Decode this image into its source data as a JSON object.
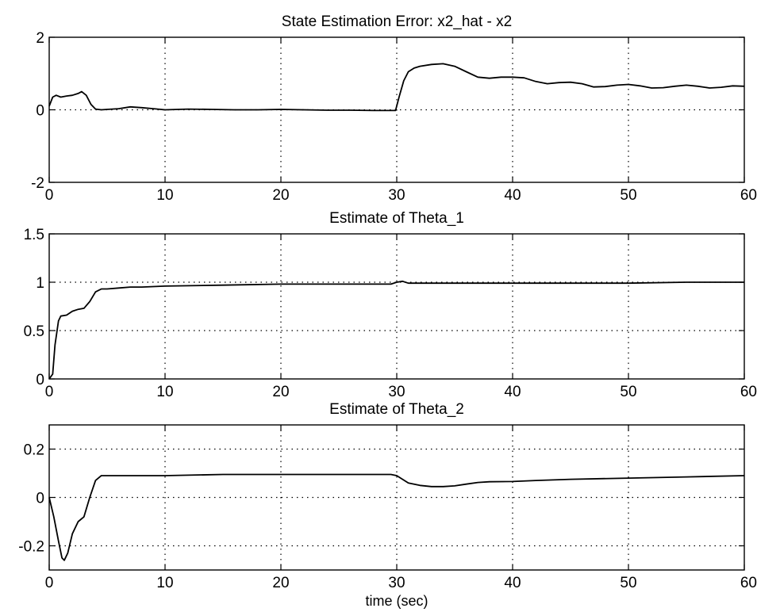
{
  "chart_data": [
    {
      "type": "line",
      "title": "State Estimation Error: x2_hat - x2",
      "xlabel": "",
      "ylabel": "",
      "xlim": [
        0,
        60
      ],
      "ylim": [
        -2,
        2
      ],
      "xticks": [
        "0",
        "10",
        "20",
        "30",
        "40",
        "50",
        "60"
      ],
      "yticks": [
        "-2",
        "0",
        "2"
      ],
      "ytick_values": [
        -2,
        0,
        2
      ],
      "grid": true,
      "series": [
        {
          "x": [
            0,
            0.3,
            0.6,
            1,
            1.5,
            2,
            2.5,
            2.8,
            3.2,
            3.6,
            4,
            4.5,
            5,
            6,
            7,
            8,
            9,
            10,
            12,
            14,
            16,
            18,
            20,
            22,
            24,
            26,
            28,
            29.9,
            30.2,
            30.6,
            31,
            31.5,
            32,
            33,
            34,
            35,
            36,
            37,
            38,
            39,
            40,
            41,
            42,
            43,
            44,
            45,
            46,
            47,
            48,
            49,
            50,
            51,
            52,
            53,
            54,
            55,
            56,
            57,
            58,
            59,
            60
          ],
          "values": [
            0.1,
            0.35,
            0.4,
            0.35,
            0.38,
            0.4,
            0.45,
            0.5,
            0.4,
            0.15,
            0.02,
            0,
            0.01,
            0.03,
            0.08,
            0.06,
            0.03,
            0,
            0.02,
            0.01,
            0,
            0,
            0.01,
            0,
            -0.01,
            -0.01,
            -0.02,
            -0.02,
            0.35,
            0.8,
            1.05,
            1.15,
            1.2,
            1.25,
            1.27,
            1.2,
            1.05,
            0.9,
            0.87,
            0.9,
            0.9,
            0.88,
            0.78,
            0.72,
            0.75,
            0.76,
            0.72,
            0.63,
            0.64,
            0.68,
            0.7,
            0.66,
            0.6,
            0.61,
            0.65,
            0.68,
            0.65,
            0.6,
            0.62,
            0.66,
            0.65
          ]
        }
      ]
    },
    {
      "type": "line",
      "title": "Estimate of Theta_1",
      "xlabel": "",
      "ylabel": "",
      "xlim": [
        0,
        60
      ],
      "ylim": [
        0,
        1.5
      ],
      "xticks": [
        "0",
        "10",
        "20",
        "30",
        "40",
        "50",
        "60"
      ],
      "yticks": [
        "0",
        "0.5",
        "1",
        "1.5"
      ],
      "ytick_values": [
        0,
        0.5,
        1,
        1.5
      ],
      "grid": true,
      "series": [
        {
          "x": [
            0,
            0.3,
            0.5,
            0.8,
            1,
            1.5,
            2,
            2.5,
            3,
            3.5,
            4,
            4.5,
            5,
            6,
            7,
            8,
            10,
            15,
            20,
            25,
            29.5,
            30,
            30.5,
            31,
            32,
            35,
            40,
            45,
            50,
            55,
            60
          ],
          "values": [
            0,
            0.05,
            0.35,
            0.6,
            0.65,
            0.66,
            0.7,
            0.72,
            0.73,
            0.8,
            0.9,
            0.93,
            0.93,
            0.94,
            0.95,
            0.95,
            0.96,
            0.97,
            0.98,
            0.98,
            0.98,
            1.0,
            1.01,
            0.99,
            0.99,
            0.99,
            0.99,
            0.99,
            0.99,
            1.0,
            1.0
          ]
        }
      ]
    },
    {
      "type": "line",
      "title": "Estimate of Theta_2",
      "xlabel": "time (sec)",
      "ylabel": "",
      "xlim": [
        0,
        60
      ],
      "ylim": [
        -0.3,
        0.3
      ],
      "xticks": [
        "0",
        "10",
        "20",
        "30",
        "40",
        "50",
        "60"
      ],
      "yticks": [
        "-0.2",
        "0",
        "0.2"
      ],
      "ytick_values": [
        -0.2,
        0,
        0.2
      ],
      "grid": true,
      "series": [
        {
          "x": [
            0,
            0.4,
            0.8,
            1.1,
            1.3,
            1.6,
            2,
            2.5,
            3,
            3.5,
            4,
            4.5,
            5,
            6,
            8,
            10,
            15,
            20,
            25,
            29.5,
            30,
            30.5,
            31,
            32,
            33,
            34,
            35,
            36,
            37,
            38,
            40,
            42,
            45,
            50,
            55,
            60
          ],
          "values": [
            0,
            -0.08,
            -0.18,
            -0.25,
            -0.26,
            -0.23,
            -0.15,
            -0.1,
            -0.08,
            0,
            0.07,
            0.09,
            0.09,
            0.09,
            0.09,
            0.09,
            0.095,
            0.095,
            0.095,
            0.095,
            0.09,
            0.075,
            0.06,
            0.05,
            0.045,
            0.045,
            0.048,
            0.055,
            0.062,
            0.065,
            0.066,
            0.07,
            0.075,
            0.08,
            0.085,
            0.09
          ]
        }
      ]
    }
  ]
}
